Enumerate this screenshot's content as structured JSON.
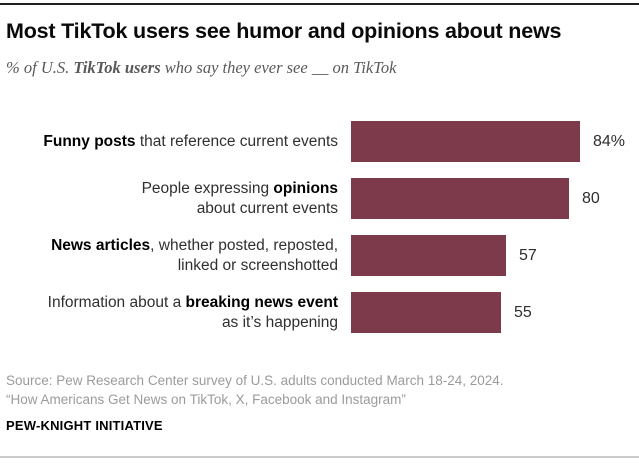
{
  "header": {
    "title": "Most TikTok users see humor and opinions about news",
    "subtitle": {
      "prefix": "% of U.S. ",
      "bold": "TikTok users",
      "suffix": " who say they ever see __ on TikTok"
    }
  },
  "chart_data": {
    "type": "bar",
    "orientation": "horizontal",
    "title": "Most TikTok users see humor and opinions about news",
    "subtitle": "% of U.S. TikTok users who say they ever see __ on TikTok",
    "categories": [
      "Funny posts that reference current events",
      "People expressing opinions about current events",
      "News articles, whether posted, reposted, linked or screenshotted",
      "Information about a breaking news event as it’s happening"
    ],
    "values": [
      84,
      80,
      57,
      55
    ],
    "value_labels": [
      "84%",
      "80",
      "57",
      "55"
    ],
    "xlim": [
      0,
      100
    ],
    "grid": false,
    "legend": false,
    "bar_color": "#7D3A4B",
    "bars": [
      {
        "lines": [
          [
            {
              "text": "Funny posts",
              "bold": true
            },
            {
              "text": " that reference current events",
              "bold": false
            }
          ]
        ],
        "value": 84,
        "value_label": "84%"
      },
      {
        "lines": [
          [
            {
              "text": "People expressing ",
              "bold": false
            },
            {
              "text": "opinions",
              "bold": true
            }
          ],
          [
            {
              "text": "about current events",
              "bold": false
            }
          ]
        ],
        "value": 80,
        "value_label": "80"
      },
      {
        "lines": [
          [
            {
              "text": "News articles",
              "bold": true
            },
            {
              "text": ", whether posted, reposted,",
              "bold": false
            }
          ],
          [
            {
              "text": "linked or screenshotted",
              "bold": false
            }
          ]
        ],
        "value": 57,
        "value_label": "57"
      },
      {
        "lines": [
          [
            {
              "text": "Information about a ",
              "bold": false
            },
            {
              "text": "breaking news event",
              "bold": true
            }
          ],
          [
            {
              "text": "as it’s happening",
              "bold": false
            }
          ]
        ],
        "value": 55,
        "value_label": "55"
      }
    ]
  },
  "footer": {
    "source_line1": "Source: Pew Research Center survey of U.S. adults conducted March 18-24, 2024.",
    "source_line2": "“How Americans Get News on TikTok, X, Facebook and Instagram”",
    "brand": "PEW-KNIGHT INITIATIVE"
  },
  "colors": {
    "bar": "#7D3A4B",
    "top_rule": "#1F1F1F",
    "bottom_rule": "#CBCBCB",
    "footer_text": "#9B9B9B"
  }
}
